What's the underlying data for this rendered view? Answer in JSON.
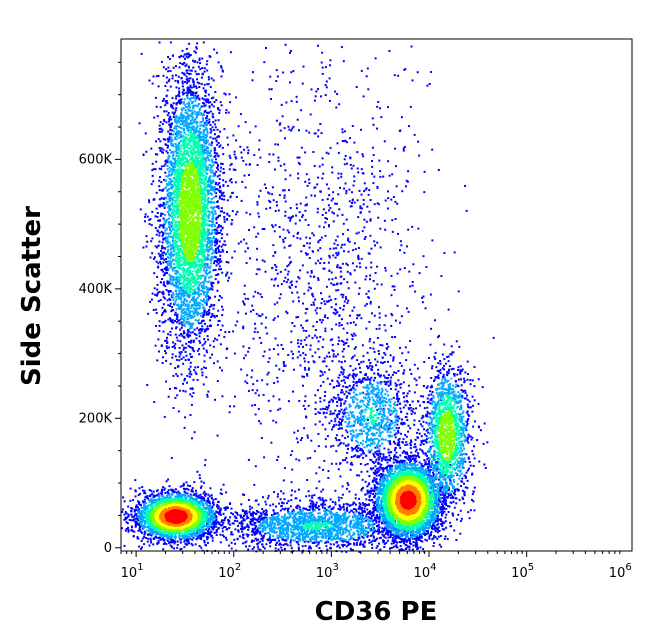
{
  "chart_data": {
    "type": "scatter",
    "title": "",
    "xlabel": "CD36 PE",
    "ylabel": "Side Scatter",
    "x_scale": "log",
    "y_scale": "linear",
    "xlim": [
      7,
      1200000
    ],
    "ylim": [
      -5000,
      786000
    ],
    "x_ticks": [
      {
        "value": 10,
        "base": "10",
        "exp": "1"
      },
      {
        "value": 100,
        "base": "10",
        "exp": "2"
      },
      {
        "value": 1000,
        "base": "10",
        "exp": "3"
      },
      {
        "value": 10000,
        "base": "10",
        "exp": "4"
      },
      {
        "value": 100000,
        "base": "10",
        "exp": "5"
      },
      {
        "value": 1000000,
        "base": "10",
        "exp": "6"
      }
    ],
    "y_ticks": [
      {
        "value": 0,
        "label": "0"
      },
      {
        "value": 200000,
        "label": "200K"
      },
      {
        "value": 400000,
        "label": "400K"
      },
      {
        "value": 600000,
        "label": "600K"
      }
    ],
    "density_colors": [
      "#0000ff",
      "#00a8ff",
      "#00ffb0",
      "#80ff00",
      "#ffff00",
      "#ff8000",
      "#ff0000"
    ],
    "populations": [
      {
        "x_center": 35,
        "x_log_sd": 0.16,
        "y_center": 520000,
        "y_sd": 110000,
        "count": 4500,
        "peak_density": 0.55
      },
      {
        "x_center": 25,
        "x_log_sd": 0.2,
        "y_center": 50000,
        "y_sd": 18000,
        "count": 3200,
        "peak_density": 1.0
      },
      {
        "x_center": 6000,
        "x_log_sd": 0.17,
        "y_center": 75000,
        "y_sd": 30000,
        "count": 3800,
        "peak_density": 0.95
      },
      {
        "x_center": 15000,
        "x_log_sd": 0.12,
        "y_center": 175000,
        "y_sd": 55000,
        "count": 1500,
        "peak_density": 0.55
      },
      {
        "x_center": 2500,
        "x_log_sd": 0.22,
        "y_center": 205000,
        "y_sd": 45000,
        "count": 900,
        "peak_density": 0.3
      },
      {
        "x_center": 700,
        "x_log_sd": 0.5,
        "y_center": 35000,
        "y_sd": 20000,
        "count": 1800,
        "peak_density": 0.3
      },
      {
        "x_center": 800,
        "x_log_sd": 0.55,
        "y_center": 420000,
        "y_sd": 180000,
        "count": 1300,
        "peak_density": 0.05
      }
    ],
    "grid": false,
    "legend": "none"
  }
}
